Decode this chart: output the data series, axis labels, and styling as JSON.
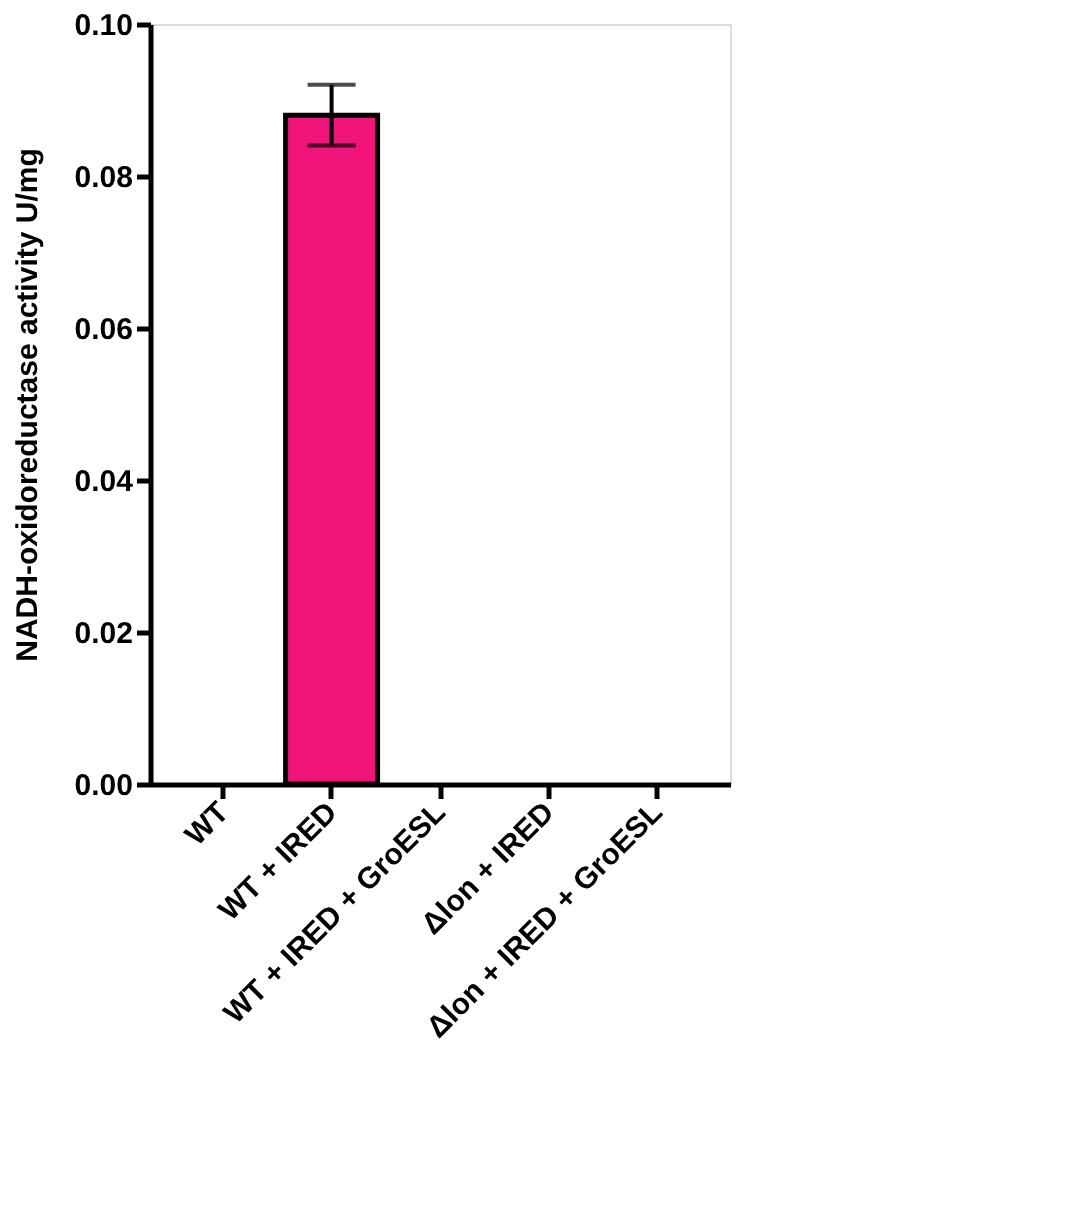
{
  "chart_data": {
    "type": "bar",
    "ylabel": "NADH-oxidoreductase activity U/mg",
    "categories": [
      "WT",
      "WT + IRED",
      "WT + IRED + GroESL",
      "Δlon + IRED",
      "Δlon + IRED + GroESL"
    ],
    "values": [
      0,
      0.088,
      0,
      0,
      0
    ],
    "errors": [
      null,
      0.004,
      null,
      null,
      null
    ],
    "color": "#f0147a",
    "ylim": [
      0,
      0.1
    ],
    "yticks": [
      {
        "value": 0,
        "label": "0.00"
      },
      {
        "value": 0.02,
        "label": "0.02"
      },
      {
        "value": 0.04,
        "label": "0.04"
      },
      {
        "value": 0.06,
        "label": "0.06"
      },
      {
        "value": 0.08,
        "label": "0.08"
      },
      {
        "value": 0.1,
        "label": "0.10"
      }
    ],
    "grid": false
  }
}
